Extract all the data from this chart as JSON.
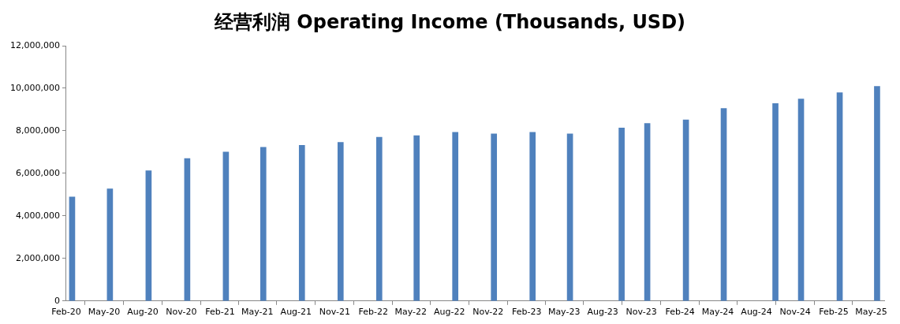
{
  "chart_data": {
    "type": "bar",
    "title": "经营利润 Operating Income (Thousands, USD)",
    "x": [
      "2020-02-15",
      "2020-05-15",
      "2020-08-15",
      "2020-11-15",
      "2021-02-15",
      "2021-05-15",
      "2021-08-15",
      "2021-11-15",
      "2022-02-15",
      "2022-05-15",
      "2022-08-15",
      "2022-11-15",
      "2023-02-15",
      "2023-05-15",
      "2023-09-15",
      "2023-11-15",
      "2024-02-15",
      "2024-05-15",
      "2024-09-15",
      "2024-11-15",
      "2025-02-15",
      "2025-05-15"
    ],
    "series": [
      {
        "color": "#4f81bd",
        "values": [
          4890000,
          5270000,
          6120000,
          6700000,
          7000000,
          7230000,
          7320000,
          7460000,
          7700000,
          7770000,
          7930000,
          7860000,
          7930000,
          7860000,
          8130000,
          8350000,
          8510000,
          9050000,
          9280000,
          9500000,
          9790000,
          10090000
        ]
      }
    ],
    "xlim": [
      "2020-02",
      "2025-06"
    ],
    "xticks": [
      {
        "value": "2020-02",
        "label": "Feb-20"
      },
      {
        "value": "2020-05",
        "label": "May-20"
      },
      {
        "value": "2020-08",
        "label": "Aug-20"
      },
      {
        "value": "2020-11",
        "label": "Nov-20"
      },
      {
        "value": "2021-02",
        "label": "Feb-21"
      },
      {
        "value": "2021-05",
        "label": "May-21"
      },
      {
        "value": "2021-08",
        "label": "Aug-21"
      },
      {
        "value": "2021-11",
        "label": "Nov-21"
      },
      {
        "value": "2022-02",
        "label": "Feb-22"
      },
      {
        "value": "2022-05",
        "label": "May-22"
      },
      {
        "value": "2022-08",
        "label": "Aug-22"
      },
      {
        "value": "2022-11",
        "label": "Nov-22"
      },
      {
        "value": "2023-02",
        "label": "Feb-23"
      },
      {
        "value": "2023-05",
        "label": "May-23"
      },
      {
        "value": "2023-08",
        "label": "Aug-23"
      },
      {
        "value": "2023-11",
        "label": "Nov-23"
      },
      {
        "value": "2024-02",
        "label": "Feb-24"
      },
      {
        "value": "2024-05",
        "label": "May-24"
      },
      {
        "value": "2024-08",
        "label": "Aug-24"
      },
      {
        "value": "2024-11",
        "label": "Nov-24"
      },
      {
        "value": "2025-02",
        "label": "Feb-25"
      },
      {
        "value": "2025-05",
        "label": "May-25"
      }
    ],
    "ylim": [
      0,
      12000000
    ],
    "yticks": [
      0,
      {
        "value": 2000000,
        "label": "2,000,000"
      },
      {
        "value": 4000000,
        "label": "4,000,000"
      },
      {
        "value": 6000000,
        "label": "6,000,000"
      },
      {
        "value": 8000000,
        "label": "8,000,000"
      },
      {
        "value": 10000000,
        "label": "10,000,000"
      },
      {
        "value": 12000000,
        "label": "12,000,000"
      }
    ],
    "grid": false,
    "legend": false
  }
}
